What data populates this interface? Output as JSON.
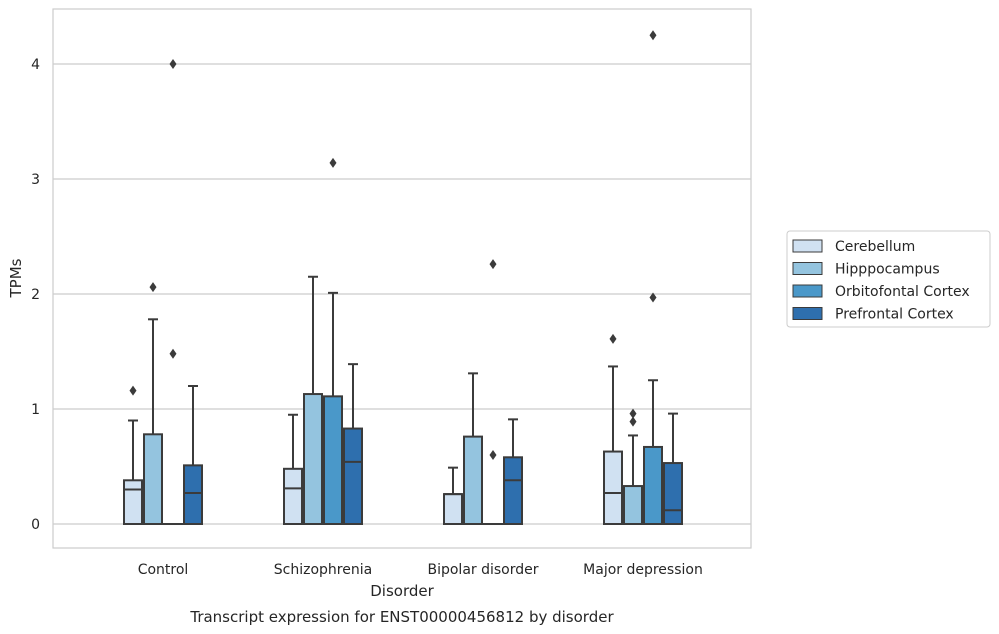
{
  "chart_data": {
    "type": "box",
    "title": "Transcript expression for ENST00000456812 by disorder",
    "xlabel": "Disorder",
    "ylabel": "TPMs",
    "ylim": [
      -0.2,
      4.45
    ],
    "yticks": [
      0,
      1,
      2,
      3,
      4
    ],
    "grid": "horizontal",
    "legend_position": "right",
    "categories": [
      "Control",
      "Schizophrenia",
      "Bipolar disorder",
      "Major depression"
    ],
    "series": [
      {
        "name": "Cerebellum",
        "color": "#d0e1f2",
        "boxes": [
          {
            "q1": 0,
            "median": 0.3,
            "q3": 0.38,
            "whisker_low": 0,
            "whisker_high": 0.9,
            "outliers": [
              1.16
            ]
          },
          {
            "q1": 0,
            "median": 0.31,
            "q3": 0.48,
            "whisker_low": 0,
            "whisker_high": 0.95,
            "outliers": []
          },
          {
            "q1": 0,
            "median": 0.26,
            "q3": 0.26,
            "whisker_low": 0,
            "whisker_high": 0.49,
            "outliers": []
          },
          {
            "q1": 0,
            "median": 0.27,
            "q3": 0.63,
            "whisker_low": 0,
            "whisker_high": 1.37,
            "outliers": [
              1.61
            ]
          }
        ]
      },
      {
        "name": "Hipppocampus",
        "color": "#94c4df",
        "boxes": [
          {
            "q1": 0,
            "median": 0,
            "q3": 0.78,
            "whisker_low": 0,
            "whisker_high": 1.78,
            "outliers": [
              2.06
            ]
          },
          {
            "q1": 0,
            "median": 0,
            "q3": 1.13,
            "whisker_low": 0,
            "whisker_high": 2.15,
            "outliers": []
          },
          {
            "q1": 0,
            "median": 0,
            "q3": 0.76,
            "whisker_low": 0,
            "whisker_high": 1.31,
            "outliers": []
          },
          {
            "q1": 0,
            "median": 0,
            "q3": 0.33,
            "whisker_low": 0,
            "whisker_high": 0.77,
            "outliers": [
              0.89,
              0.96
            ]
          }
        ]
      },
      {
        "name": "Orbitofontal Cortex",
        "color": "#4a98c9",
        "boxes": [
          {
            "q1": 0,
            "median": 0,
            "q3": 0,
            "whisker_low": 0,
            "whisker_high": 0,
            "outliers": [
              1.48,
              4.0
            ]
          },
          {
            "q1": 0,
            "median": 0,
            "q3": 1.11,
            "whisker_low": 0,
            "whisker_high": 2.01,
            "outliers": [
              3.14
            ]
          },
          {
            "q1": 0,
            "median": 0,
            "q3": 0,
            "whisker_low": 0,
            "whisker_high": 0,
            "outliers": [
              0.6,
              2.26
            ]
          },
          {
            "q1": 0,
            "median": 0,
            "q3": 0.67,
            "whisker_low": 0,
            "whisker_high": 1.25,
            "outliers": [
              1.97,
              4.25
            ]
          }
        ]
      },
      {
        "name": "Prefrontal Cortex",
        "color": "#2e6fae",
        "boxes": [
          {
            "q1": 0,
            "median": 0.27,
            "q3": 0.51,
            "whisker_low": 0,
            "whisker_high": 1.2,
            "outliers": []
          },
          {
            "q1": 0,
            "median": 0.54,
            "q3": 0.83,
            "whisker_low": 0,
            "whisker_high": 1.39,
            "outliers": []
          },
          {
            "q1": 0,
            "median": 0.38,
            "q3": 0.58,
            "whisker_low": 0,
            "whisker_high": 0.91,
            "outliers": []
          },
          {
            "q1": 0,
            "median": 0.12,
            "q3": 0.53,
            "whisker_low": 0,
            "whisker_high": 0.96,
            "outliers": []
          }
        ]
      }
    ]
  }
}
